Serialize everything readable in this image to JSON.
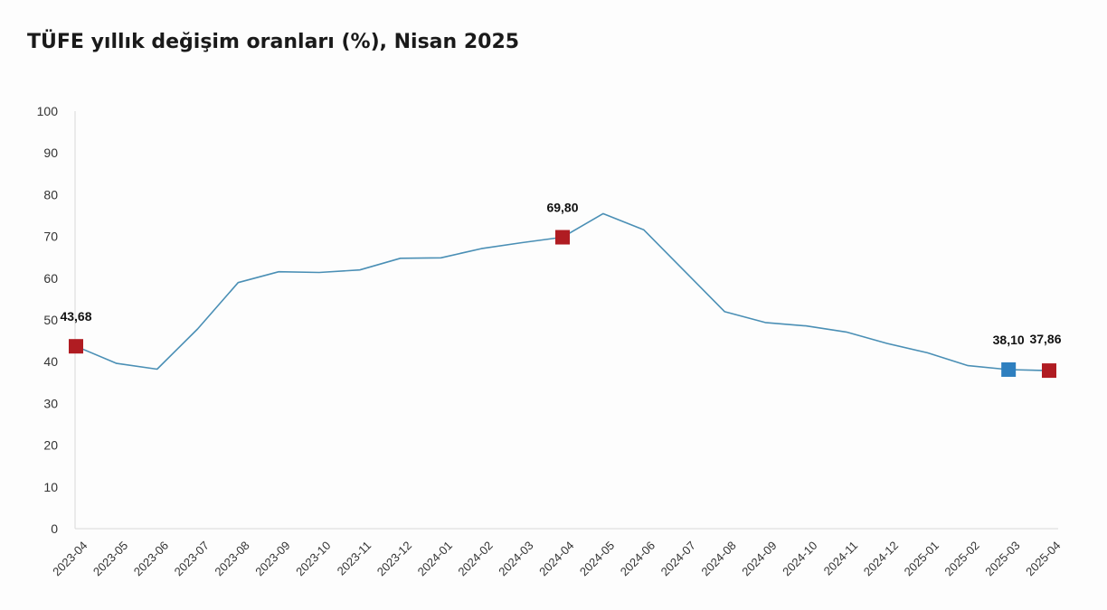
{
  "title": "TÜFE yıllık değişim oranları (%), Nisan 2025",
  "chart_data": {
    "type": "line",
    "title": "TÜFE yıllık değişim oranları (%), Nisan 2025",
    "xlabel": "",
    "ylabel": "",
    "ylim": [
      0,
      100
    ],
    "yticks": [
      "0",
      "10",
      "20",
      "30",
      "40",
      "50",
      "60",
      "70",
      "80",
      "90",
      "100"
    ],
    "categories": [
      "2023-04",
      "2023-05",
      "2023-06",
      "2023-07",
      "2023-08",
      "2023-09",
      "2023-10",
      "2023-11",
      "2023-12",
      "2024-01",
      "2024-02",
      "2024-03",
      "2024-04",
      "2024-05",
      "2024-06",
      "2024-07",
      "2024-08",
      "2024-09",
      "2024-10",
      "2024-11",
      "2024-12",
      "2025-01",
      "2025-02",
      "2025-03",
      "2025-04"
    ],
    "series": [
      {
        "values": [
          43.68,
          39.59,
          38.21,
          47.83,
          58.94,
          61.53,
          61.36,
          61.98,
          64.77,
          64.86,
          67.07,
          68.5,
          69.8,
          75.45,
          71.6,
          61.78,
          51.97,
          49.38,
          48.58,
          47.09,
          44.38,
          42.12,
          39.05,
          38.1,
          37.86
        ],
        "color": "#4a8fb5"
      }
    ],
    "markers": [
      {
        "index": 0,
        "label": "43,68",
        "color": "#b01c22"
      },
      {
        "index": 12,
        "label": "69,80",
        "color": "#b01c22"
      },
      {
        "index": 23,
        "label": "38,10",
        "color": "#2e7fbf"
      },
      {
        "index": 24,
        "label": "37,86",
        "color": "#b01c22"
      }
    ],
    "grid": false,
    "legend": "none"
  }
}
